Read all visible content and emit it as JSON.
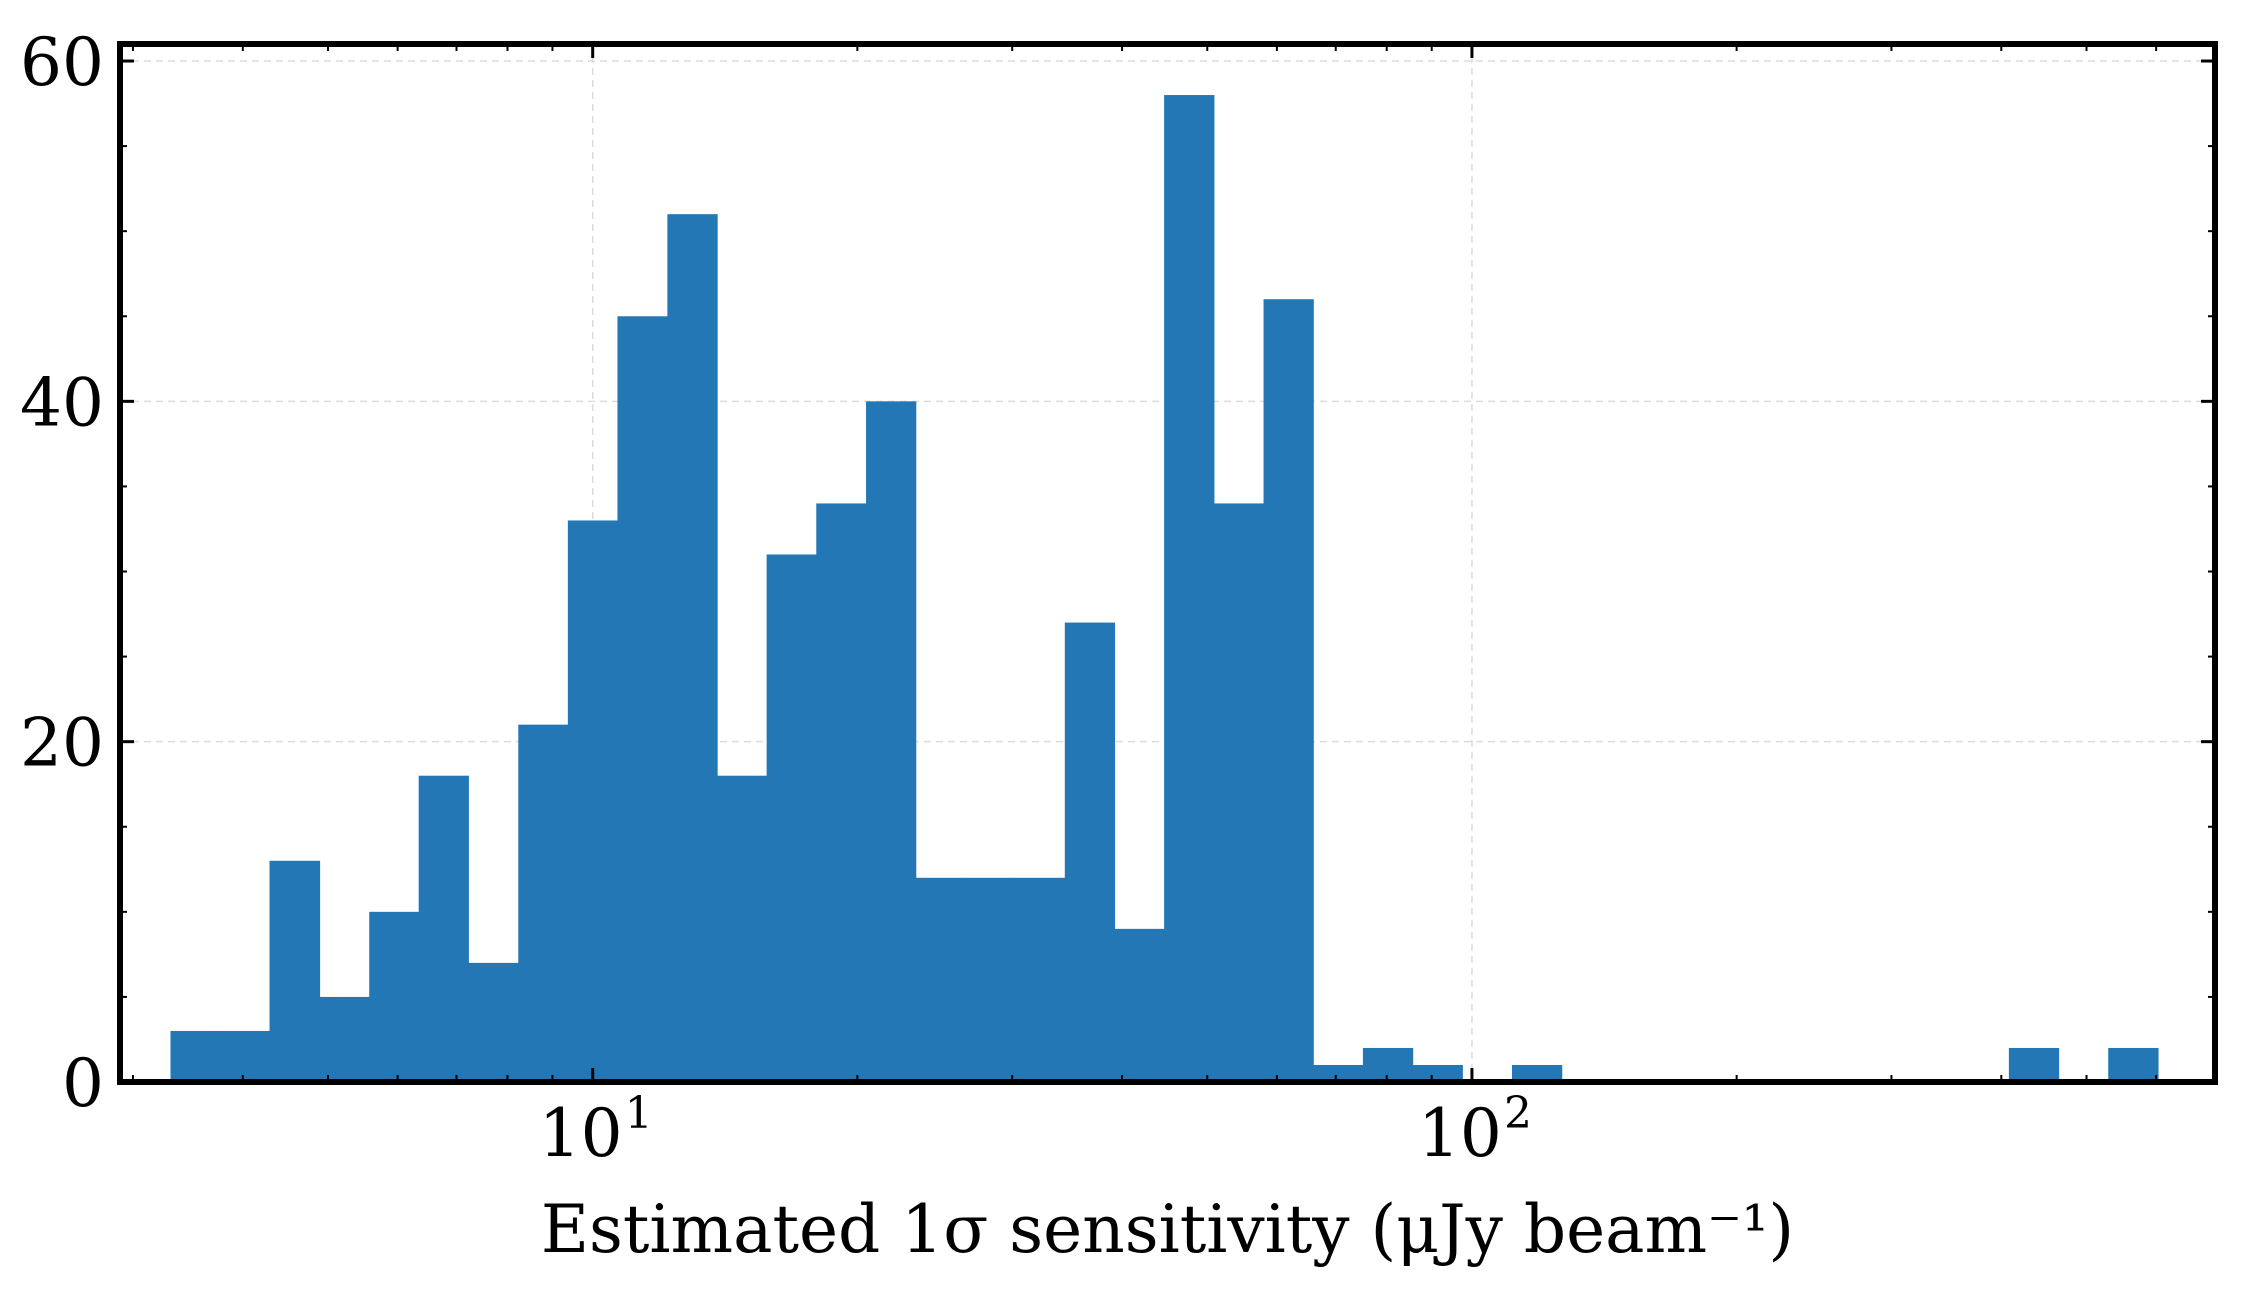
{
  "chart_data": {
    "type": "bar",
    "xscale": "log",
    "xlabel": "Estimated 1σ sensitivity (μJy beam⁻¹)",
    "ylabel": "",
    "xlim": [
      2.9,
      700
    ],
    "ylim": [
      0,
      61
    ],
    "grid": true,
    "bar_color": "#2277b4",
    "x_tick_labels": [
      {
        "value": 10,
        "label": "10",
        "exponent": "1"
      },
      {
        "value": 100,
        "label": "10",
        "exponent": "2"
      }
    ],
    "y_tick_labels": [
      {
        "value": 0,
        "label": "0"
      },
      {
        "value": 20,
        "label": "20"
      },
      {
        "value": 40,
        "label": "40"
      },
      {
        "value": 60,
        "label": "60"
      }
    ],
    "bins": [
      {
        "x0": 3.31,
        "x1": 3.77,
        "count": 3
      },
      {
        "x0": 3.77,
        "x1": 4.29,
        "count": 3
      },
      {
        "x0": 4.29,
        "x1": 4.89,
        "count": 13
      },
      {
        "x0": 4.89,
        "x1": 5.57,
        "count": 5
      },
      {
        "x0": 5.57,
        "x1": 6.34,
        "count": 10
      },
      {
        "x0": 6.34,
        "x1": 7.22,
        "count": 18
      },
      {
        "x0": 7.22,
        "x1": 8.23,
        "count": 7
      },
      {
        "x0": 8.23,
        "x1": 9.37,
        "count": 21
      },
      {
        "x0": 9.37,
        "x1": 10.67,
        "count": 33
      },
      {
        "x0": 10.67,
        "x1": 12.16,
        "count": 45
      },
      {
        "x0": 12.16,
        "x1": 13.85,
        "count": 51
      },
      {
        "x0": 13.85,
        "x1": 15.77,
        "count": 18
      },
      {
        "x0": 15.77,
        "x1": 17.96,
        "count": 31
      },
      {
        "x0": 17.96,
        "x1": 20.46,
        "count": 34
      },
      {
        "x0": 20.46,
        "x1": 23.3,
        "count": 40
      },
      {
        "x0": 23.3,
        "x1": 26.54,
        "count": 12
      },
      {
        "x0": 26.54,
        "x1": 30.23,
        "count": 12
      },
      {
        "x0": 30.23,
        "x1": 34.43,
        "count": 12
      },
      {
        "x0": 34.43,
        "x1": 39.21,
        "count": 27
      },
      {
        "x0": 39.21,
        "x1": 44.66,
        "count": 9
      },
      {
        "x0": 44.66,
        "x1": 50.87,
        "count": 58
      },
      {
        "x0": 50.87,
        "x1": 57.94,
        "count": 34
      },
      {
        "x0": 57.94,
        "x1": 65.99,
        "count": 46
      },
      {
        "x0": 65.99,
        "x1": 75.16,
        "count": 1
      },
      {
        "x0": 75.16,
        "x1": 85.6,
        "count": 2
      },
      {
        "x0": 85.6,
        "x1": 97.5,
        "count": 1
      },
      {
        "x0": 97.5,
        "x1": 111.05,
        "count": 0
      },
      {
        "x0": 111.05,
        "x1": 126.48,
        "count": 1
      },
      {
        "x0": 126.48,
        "x1": 144.06,
        "count": 0
      },
      {
        "x0": 144.06,
        "x1": 164.08,
        "count": 0
      },
      {
        "x0": 164.08,
        "x1": 186.88,
        "count": 0
      },
      {
        "x0": 186.88,
        "x1": 212.86,
        "count": 0
      },
      {
        "x0": 212.86,
        "x1": 242.44,
        "count": 0
      },
      {
        "x0": 242.44,
        "x1": 276.13,
        "count": 0
      },
      {
        "x0": 276.13,
        "x1": 314.5,
        "count": 0
      },
      {
        "x0": 314.5,
        "x1": 358.21,
        "count": 0
      },
      {
        "x0": 358.21,
        "x1": 407.99,
        "count": 0
      },
      {
        "x0": 407.99,
        "x1": 464.69,
        "count": 2
      },
      {
        "x0": 464.69,
        "x1": 529.27,
        "count": 0
      },
      {
        "x0": 529.27,
        "x1": 602.83,
        "count": 2
      }
    ]
  }
}
